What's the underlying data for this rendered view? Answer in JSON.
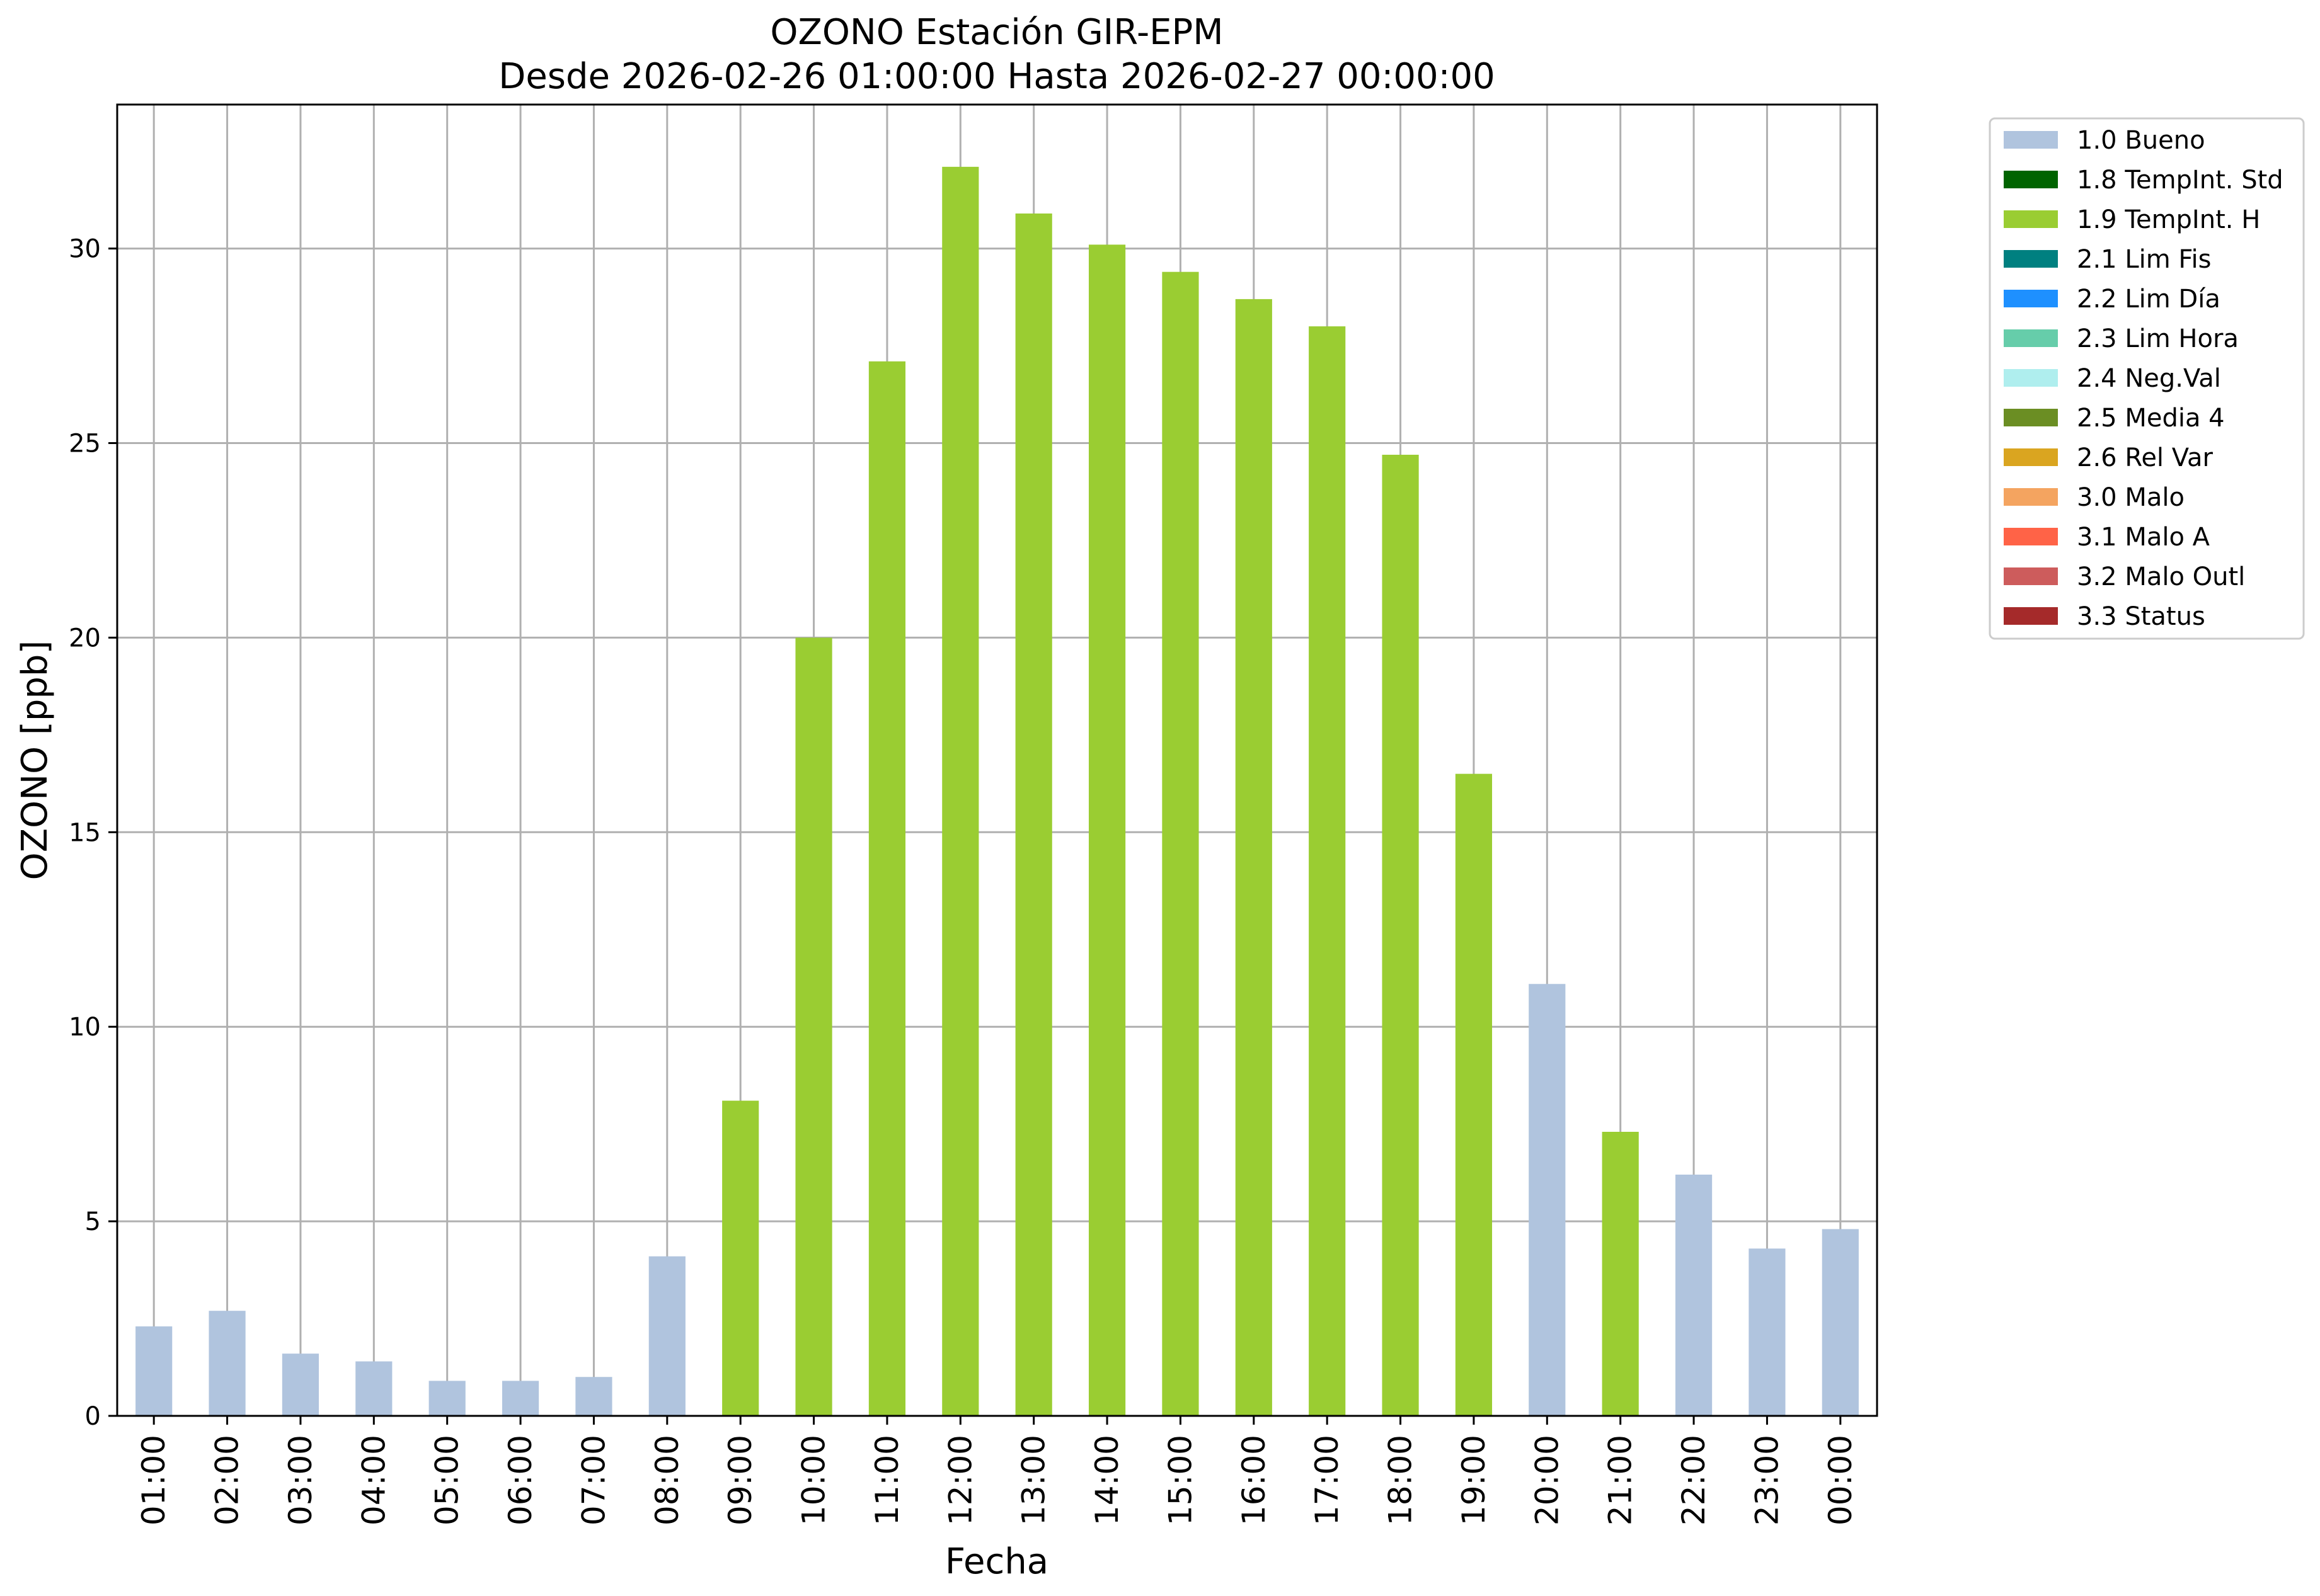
{
  "chart_data": {
    "type": "bar",
    "title": "OZONO Estación GIR-EPM",
    "subtitle": "Desde 2026-02-26 01:00:00 Hasta 2026-02-27 00:00:00",
    "xlabel": "Fecha",
    "ylabel": "OZONO [ppb]",
    "ylim": [
      0,
      33.7
    ],
    "yticks": [
      0,
      5,
      10,
      15,
      20,
      25,
      30
    ],
    "grid": true,
    "legend_position": "outside-top-right",
    "categories": [
      "01:00",
      "02:00",
      "03:00",
      "04:00",
      "05:00",
      "06:00",
      "07:00",
      "08:00",
      "09:00",
      "10:00",
      "11:00",
      "12:00",
      "13:00",
      "14:00",
      "15:00",
      "16:00",
      "17:00",
      "18:00",
      "19:00",
      "20:00",
      "21:00",
      "22:00",
      "23:00",
      "00:00"
    ],
    "values": [
      2.3,
      2.7,
      1.6,
      1.4,
      0.9,
      0.9,
      1.0,
      4.1,
      8.1,
      20.0,
      27.1,
      32.1,
      30.9,
      30.1,
      29.4,
      28.7,
      28.0,
      24.7,
      16.5,
      11.1,
      7.3,
      6.2,
      4.3,
      4.8
    ],
    "flags": [
      "1.0 Bueno",
      "1.0 Bueno",
      "1.0 Bueno",
      "1.0 Bueno",
      "1.0 Bueno",
      "1.0 Bueno",
      "1.0 Bueno",
      "1.0 Bueno",
      "1.9 TempInt. H",
      "1.9 TempInt. H",
      "1.9 TempInt. H",
      "1.9 TempInt. H",
      "1.9 TempInt. H",
      "1.9 TempInt. H",
      "1.9 TempInt. H",
      "1.9 TempInt. H",
      "1.9 TempInt. H",
      "1.9 TempInt. H",
      "1.9 TempInt. H",
      "1.0 Bueno",
      "1.9 TempInt. H",
      "1.0 Bueno",
      "1.0 Bueno",
      "1.0 Bueno"
    ],
    "legend": [
      {
        "label": "1.0 Bueno",
        "color": "#b0c4de"
      },
      {
        "label": "1.8 TempInt. Std",
        "color": "#006400"
      },
      {
        "label": "1.9 TempInt. H",
        "color": "#9acd32"
      },
      {
        "label": "2.1 Lim Fis",
        "color": "#008080"
      },
      {
        "label": "2.2 Lim Día",
        "color": "#1e90ff"
      },
      {
        "label": "2.3 Lim Hora",
        "color": "#66cdaa"
      },
      {
        "label": "2.4 Neg.Val",
        "color": "#afeeee"
      },
      {
        "label": "2.5 Media 4",
        "color": "#6b8e23"
      },
      {
        "label": "2.6 Rel Var",
        "color": "#daa520"
      },
      {
        "label": "3.0 Malo",
        "color": "#f4a460"
      },
      {
        "label": "3.1 Malo A",
        "color": "#ff6347"
      },
      {
        "label": "3.2 Malo Outl",
        "color": "#cd5c5c"
      },
      {
        "label": "3.3 Status",
        "color": "#a52a2a"
      }
    ]
  }
}
